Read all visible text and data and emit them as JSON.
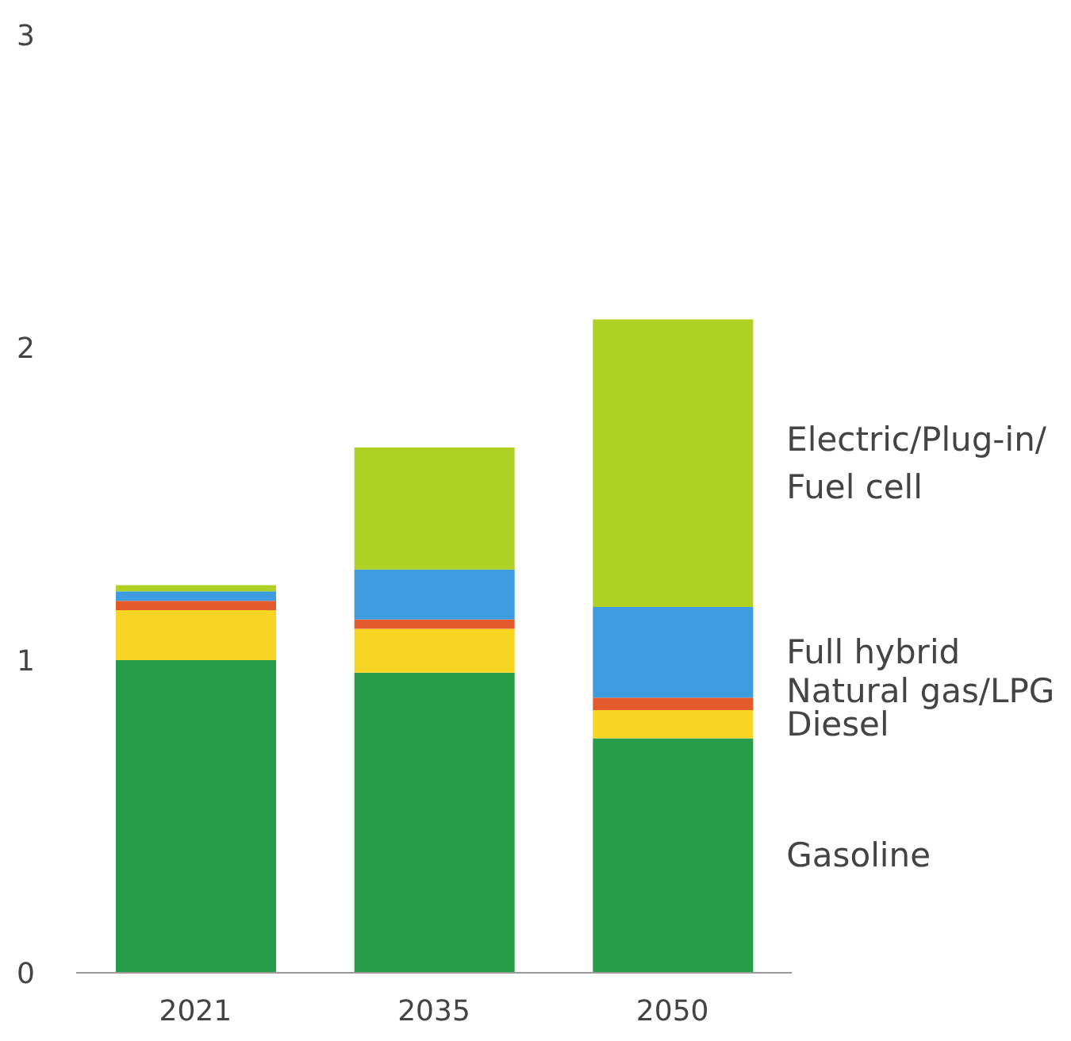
{
  "chart_data": {
    "type": "bar",
    "stacked": true,
    "categories": [
      "2021",
      "2035",
      "2050"
    ],
    "series": [
      {
        "name": "Gasoline",
        "color": "#279d4a",
        "values": [
          1.0,
          0.96,
          0.75
        ]
      },
      {
        "name": "Diesel",
        "color": "#f8d423",
        "values": [
          0.16,
          0.14,
          0.09
        ]
      },
      {
        "name": "Natural gas/LPG",
        "color": "#e45a2b",
        "values": [
          0.03,
          0.03,
          0.04
        ]
      },
      {
        "name": "Full hybrid",
        "color": "#3d9be0",
        "values": [
          0.03,
          0.16,
          0.29
        ]
      },
      {
        "name": "Electric/Plug-in/Fuel cell",
        "color": "#aed124",
        "values": [
          0.02,
          0.39,
          0.92
        ]
      }
    ],
    "ylim": [
      0,
      3
    ],
    "yticks": [
      0,
      1,
      2,
      3
    ]
  }
}
